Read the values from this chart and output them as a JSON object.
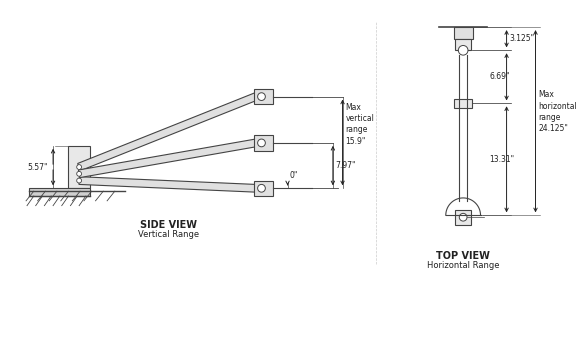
{
  "title": "",
  "bg_color": "#ffffff",
  "line_color": "#444444",
  "dim_color": "#222222",
  "side_view_label": "SIDE VIEW",
  "side_view_sublabel": "Vertical Range",
  "top_view_label": "TOP VIEW",
  "top_view_sublabel": "Horizontal Range",
  "dim_5_57": "5.57\"",
  "dim_7_97": "7.97\"",
  "dim_0": "0\"",
  "dim_15_9": "15.9\"",
  "dim_max_vert": "Max\nvertical\nrange",
  "dim_3_125": "3.125\"",
  "dim_6_69": "6.69\"",
  "dim_13_31": "13.31\"",
  "dim_max_horiz": "Max\nhorizontal\nrange\n24.125\""
}
